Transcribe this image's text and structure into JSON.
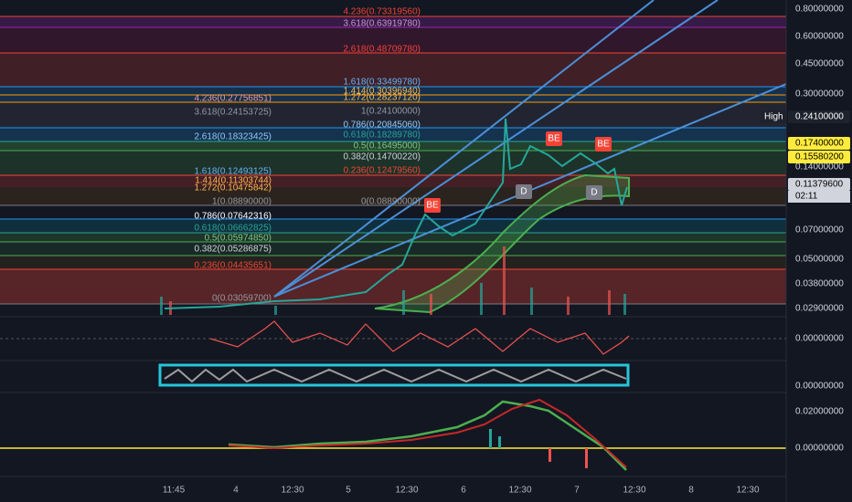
{
  "price_axis": [
    "0.80000000",
    "0.60000000",
    "0.45000000",
    "0.30000000",
    "0.24100000",
    "0.17400000",
    "0.15580200",
    "0.14000000",
    "0.11379600",
    "0.07000000",
    "0.05000000",
    "0.03800000",
    "0.02900000",
    "0.00000000",
    "0.00000000",
    "0.02000000",
    "0.00000000"
  ],
  "high_label": "High",
  "countdown": "02:11",
  "time_axis": [
    "11:45",
    "4",
    "12:30",
    "5",
    "12:30",
    "6",
    "12:30",
    "7",
    "12:30",
    "8",
    "12:30"
  ],
  "fib_right": [
    "4.236(0.73319560)",
    "3.618(0.63919780)",
    "2.618(0.48709780)",
    "1.618(0.33499780)",
    "1.414(0.30396940)",
    "1.272(0.28237120)",
    "1(0.24100000)",
    "0.786(0.20845060)",
    "0.618(0.18289780)",
    "0.5(0.16495000)",
    "0.382(0.14700220)",
    "0.236(0.12479560)",
    "0(0.08890000)"
  ],
  "fib_left": [
    "4.236(0.27756851)",
    "3.618(0.24153725)",
    "2.618(0.18323425)",
    "1.618(0.12493125)",
    "1.414(0.11303744)",
    "1.272(0.10475842)",
    "1(0.08890000)",
    "0.786(0.07642316)",
    "0.618(0.06662825)",
    "0.5(0.05974850)",
    "0.382(0.05286875)",
    "0.236(0.04435651)",
    "0(0.03059700)"
  ],
  "badges": [
    "BE",
    "BE",
    "BE",
    "D",
    "D"
  ]
}
